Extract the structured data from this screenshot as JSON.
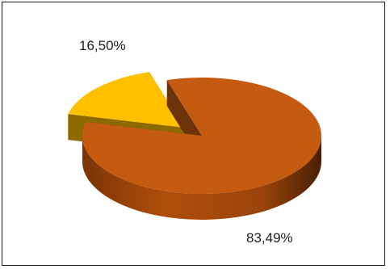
{
  "chart_data": {
    "type": "pie",
    "style": "3d-exploded",
    "categories": [
      "",
      ""
    ],
    "values": [
      83.49,
      16.5
    ],
    "data_labels": [
      "83,49%",
      "16,50%"
    ],
    "colors": [
      "#C55A11",
      "#FFC000"
    ],
    "legend": "none"
  }
}
